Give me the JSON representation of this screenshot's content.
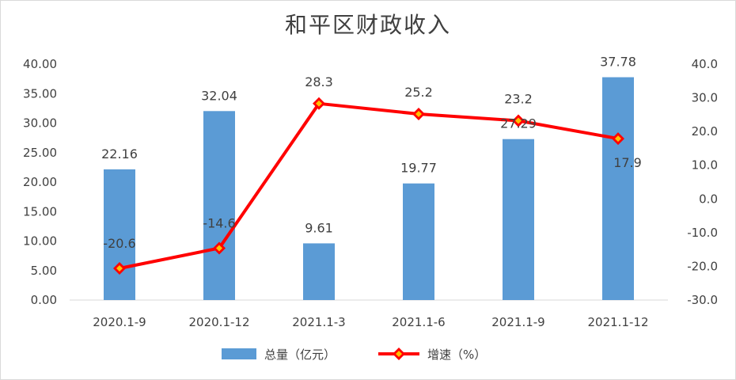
{
  "chart_data": {
    "type": "bar",
    "title": "和平区财政收入",
    "categories": [
      "2020.1-9",
      "2020.1-12",
      "2021.1-3",
      "2021.1-6",
      "2021.1-9",
      "2021.1-12"
    ],
    "series": [
      {
        "name": "总量（亿元）",
        "type": "bar",
        "axis": "left",
        "values": [
          22.16,
          32.04,
          9.61,
          19.77,
          27.29,
          37.78
        ],
        "labels": [
          "22.16",
          "32.04",
          "9.61",
          "19.77",
          "27.29",
          "37.78"
        ],
        "color": "#5B9BD5"
      },
      {
        "name": "增速（%）",
        "type": "line",
        "axis": "right",
        "values": [
          -20.6,
          -14.6,
          28.3,
          25.2,
          23.2,
          17.9
        ],
        "labels": [
          "-20.6",
          "-14.6",
          "28.3",
          "25.2",
          "23.2",
          "17.9"
        ],
        "color": "#FF0000",
        "marker_color": "#FFC000"
      }
    ],
    "y_left": {
      "min": 0,
      "max": 40,
      "step": 5,
      "tick_labels": [
        "0.00",
        "5.00",
        "10.00",
        "15.00",
        "20.00",
        "25.00",
        "30.00",
        "35.00",
        "40.00"
      ]
    },
    "y_right": {
      "min": -30,
      "max": 40,
      "step": 10,
      "tick_labels": [
        "-30.0",
        "-20.0",
        "-10.0",
        "0.0",
        "10.0",
        "20.0",
        "30.0",
        "40.0"
      ]
    },
    "grid": false,
    "legend_position": "bottom"
  }
}
